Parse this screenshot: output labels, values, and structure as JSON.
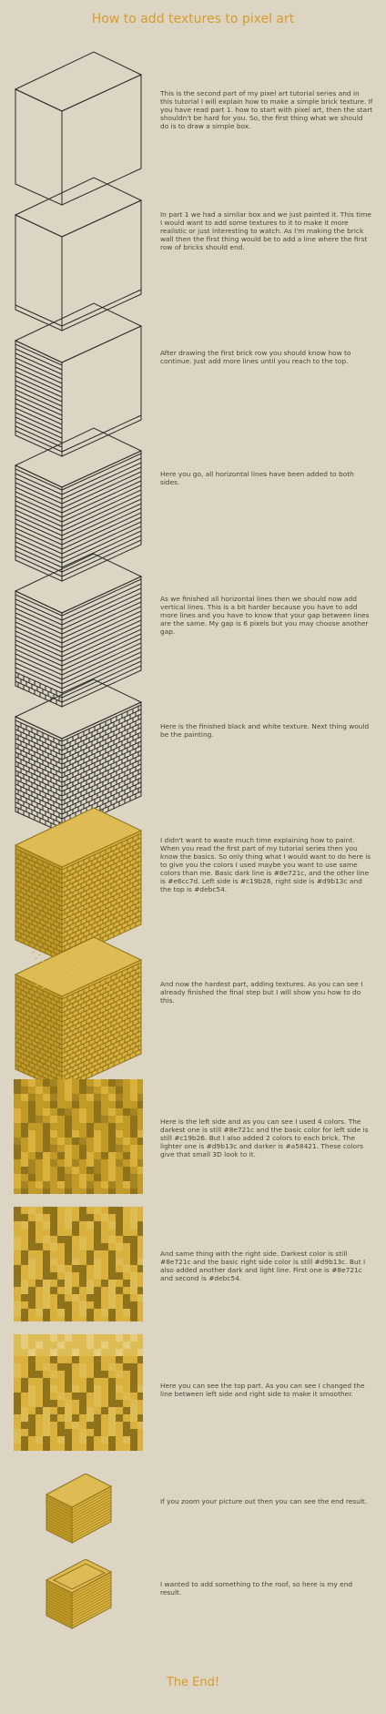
{
  "page": {
    "title": "How to add textures to pixel art",
    "end": "The End!"
  },
  "colors": {
    "background": "#ddd5c3",
    "title": "#d79b2a",
    "dark_line": "#8e721c",
    "left_side": "#c19b26",
    "right_side": "#d9b13c",
    "top": "#debc54",
    "line_color": "#e6cc7d",
    "left_lighter": "#d9b13c",
    "left_darker": "#a58421",
    "right_lighter": "#debc54",
    "outline": "#2b2b2b"
  },
  "steps": [
    {
      "kind": "box-empty",
      "text": "This is the second part of my pixel art tutorial series and in this tutorial I will explain how to make a simple brick texture. If you have read part 1. how to start with pixel art, then the start shouldn't be hard for you. So, the first thing what we should do is to draw a simple box."
    },
    {
      "kind": "box-one-line",
      "text": "In part 1 we had a similar box and we just painted it. This time I would want to add some textures to it to make it more realistic or just interesting to watch. As I'm making the brick wall then the first thing would be to add a line where the first row of bricks should end."
    },
    {
      "kind": "box-lines-left",
      "text": "After drawing the first brick row you should know how to continue. Just add more lines until you reach to the top."
    },
    {
      "kind": "box-lines-both",
      "text": "Here you go, all horizontal lines have been added to both sides."
    },
    {
      "kind": "box-some-vertical",
      "text": "As we finished all horizontal lines then we should now add vertical lines. This is a bit harder because you have to add more lines and you have to know that your gap between lines are the same. My gap is 6 pixels but you may choose another gap."
    },
    {
      "kind": "box-bw-bricks",
      "text": "Here is the finished black and white texture. Next thing would be the painting."
    },
    {
      "kind": "box-painted",
      "text": "I didn't want to waste much time explaining how to paint. When you read the first part of my tutorial series then you know the basics. So only thing what I would want to do here is to give you the colors I used maybe you want to use same colors than me. Basic dark line is #8e721c, and the other line is #e6cc7d. Left side is #c19b26, right side is #d9b13c and the top is #debc54."
    },
    {
      "kind": "box-painted-tex",
      "text": "And now the hardest part, adding textures. As you can see I already finished the final step but I will show you how to do this."
    },
    {
      "kind": "zoom-left",
      "text": "Here is the left side and as you can see I used 4 colors. The darkest one is still #8e721c and the basic color for left side is still #c19b26. But I also added 2 colors to each brick. The lighter one is #d9b13c and darker is #a58421. These colors give that small 3D look to it."
    },
    {
      "kind": "zoom-right",
      "text": "And same thing with the right side. Darkest color is still #8e721c and the basic right side color is still #d9b13c.  But I also added another dark and light line. First one is #8e721c and second is #debc54."
    },
    {
      "kind": "zoom-top",
      "text": "Here you can see the top part. As you can see I changed the line between left side and right side to make it smoother."
    },
    {
      "kind": "small-box",
      "text": "If you zoom your picture out then you can see the end result."
    },
    {
      "kind": "small-box-roof",
      "text": "I wanted to add something to the roof, so here is my end result."
    }
  ]
}
